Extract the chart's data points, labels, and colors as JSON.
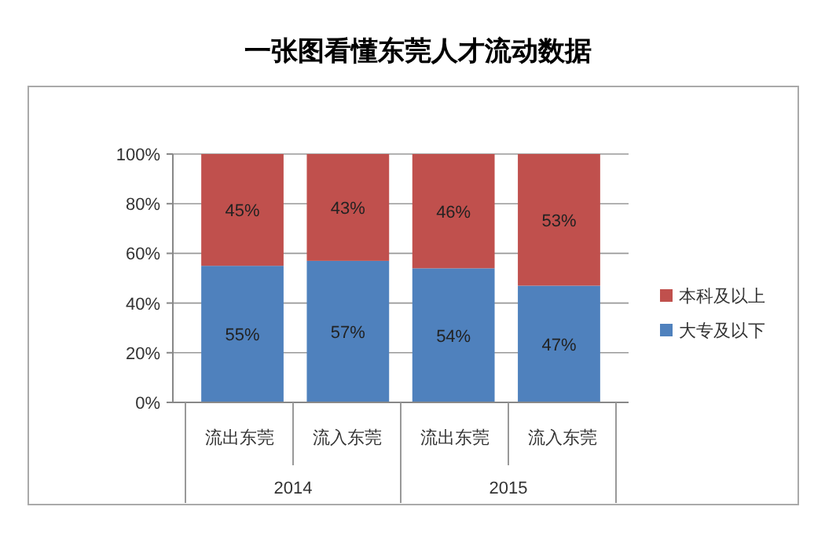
{
  "chart_data": {
    "type": "bar",
    "title": "一张图看懂东莞人才流动数据",
    "stacked": true,
    "categories": [
      "流出东莞",
      "流入东莞",
      "流出东莞",
      "流入东莞"
    ],
    "series": [
      {
        "name": "大专及以下",
        "color": "#4f81bd",
        "values": [
          55,
          57,
          54,
          47
        ],
        "value_labels": [
          "55%",
          "57%",
          "54%",
          "47%"
        ]
      },
      {
        "name": "本科及以上",
        "color": "#c0504d",
        "values": [
          45,
          43,
          46,
          53
        ],
        "value_labels": [
          "45%",
          "43%",
          "46%",
          "53%"
        ]
      }
    ],
    "ylim": [
      0,
      100
    ],
    "yticks": [
      {
        "value": 0,
        "label": "0%"
      },
      {
        "value": 20,
        "label": "20%"
      },
      {
        "value": 40,
        "label": "40%"
      },
      {
        "value": 60,
        "label": "60%"
      },
      {
        "value": 80,
        "label": "80%"
      },
      {
        "value": 100,
        "label": "100%"
      }
    ],
    "grid": "y",
    "legend": "right",
    "annotations": [
      "2014",
      "2015"
    ]
  }
}
